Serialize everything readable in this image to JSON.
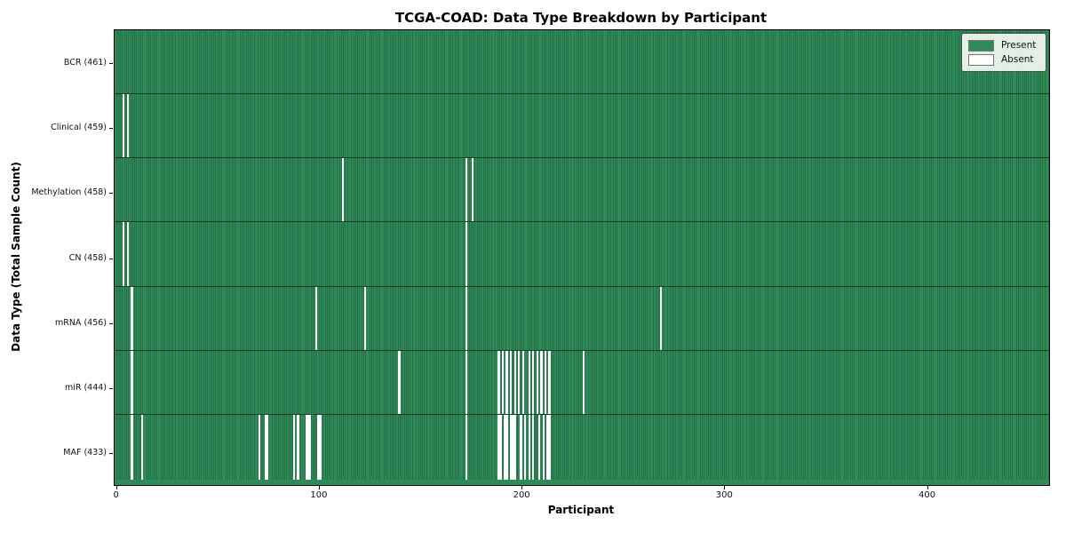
{
  "title": "TCGA-COAD: Data Type Breakdown by Participant",
  "axes": {
    "xlabel": "Participant",
    "ylabel": "Data Type (Total Sample Count)"
  },
  "legend": {
    "items": [
      {
        "label": "Present",
        "color": "#2e8b57"
      },
      {
        "label": "Absent",
        "color": "#ffffff"
      }
    ]
  },
  "chart_data": {
    "type": "heatmap",
    "title": "TCGA-COAD: Data Type Breakdown by Participant",
    "xlabel": "Participant",
    "ylabel": "Data Type (Total Sample Count)",
    "legend": [
      "Present",
      "Absent"
    ],
    "legend_position": "upper right",
    "grid": false,
    "n_participants": 461,
    "x_ticks": [
      0,
      100,
      200,
      300,
      400
    ],
    "colors": {
      "present": "#2e8b57",
      "present_edge": "#1d5737",
      "absent": "#ffffff"
    },
    "rows": [
      {
        "name": "BCR",
        "label": "BCR (461)",
        "count": 461,
        "absent_indices": []
      },
      {
        "name": "Clinical",
        "label": "Clinical (459)",
        "count": 459,
        "absent_indices": [
          4,
          6
        ]
      },
      {
        "name": "Methylation",
        "label": "Methylation (458)",
        "count": 458,
        "absent_indices": [
          112,
          173,
          176
        ]
      },
      {
        "name": "CN",
        "label": "CN (458)",
        "count": 458,
        "absent_indices": [
          4,
          6,
          173
        ]
      },
      {
        "name": "mRNA",
        "label": "mRNA (456)",
        "count": 456,
        "absent_indices": [
          8,
          99,
          123,
          173,
          269
        ]
      },
      {
        "name": "miR",
        "label": "miR (444)",
        "count": 444,
        "absent_indices": [
          8,
          140,
          173,
          189,
          191,
          193,
          195,
          197,
          199,
          201,
          204,
          206,
          208,
          210,
          212,
          214,
          231
        ]
      },
      {
        "name": "MAF",
        "label": "MAF (433)",
        "count": 433,
        "absent_indices": [
          8,
          13,
          71,
          74,
          75,
          88,
          90,
          94,
          95,
          96,
          100,
          101,
          173,
          189,
          190,
          192,
          193,
          195,
          196,
          197,
          200,
          202,
          204,
          206,
          209,
          211,
          213,
          214
        ]
      }
    ]
  }
}
